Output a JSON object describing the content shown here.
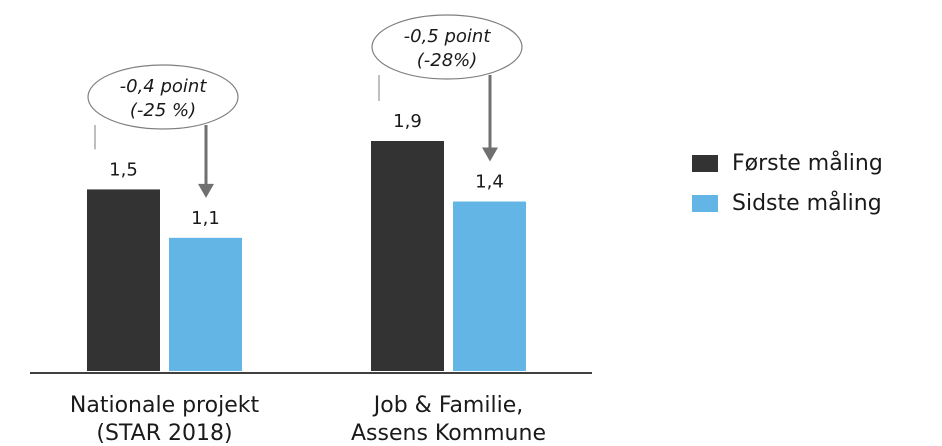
{
  "chart_data": {
    "type": "bar",
    "categories": [
      "Nationale projekt\n(STAR 2018)",
      "Job & Familie,\nAssens Kommune"
    ],
    "series": [
      {
        "name": "Første måling",
        "values": [
          1.5,
          1.9
        ],
        "value_labels": [
          "1,5",
          "1,9"
        ],
        "color": "#333333"
      },
      {
        "name": "Sidste måling",
        "values": [
          1.1,
          1.4
        ],
        "value_labels": [
          "1,1",
          "1,4"
        ],
        "color": "#62b5e5"
      }
    ],
    "annotations": [
      {
        "category_index": 0,
        "lines": [
          "-0,4 point",
          "(-25 %)"
        ]
      },
      {
        "category_index": 1,
        "lines": [
          "-0,5 point",
          "(-28%)"
        ]
      }
    ],
    "ylim": [
      0,
      1.9
    ],
    "legend_position": "right",
    "grid": false,
    "title": "",
    "xlabel": "",
    "ylabel": ""
  }
}
